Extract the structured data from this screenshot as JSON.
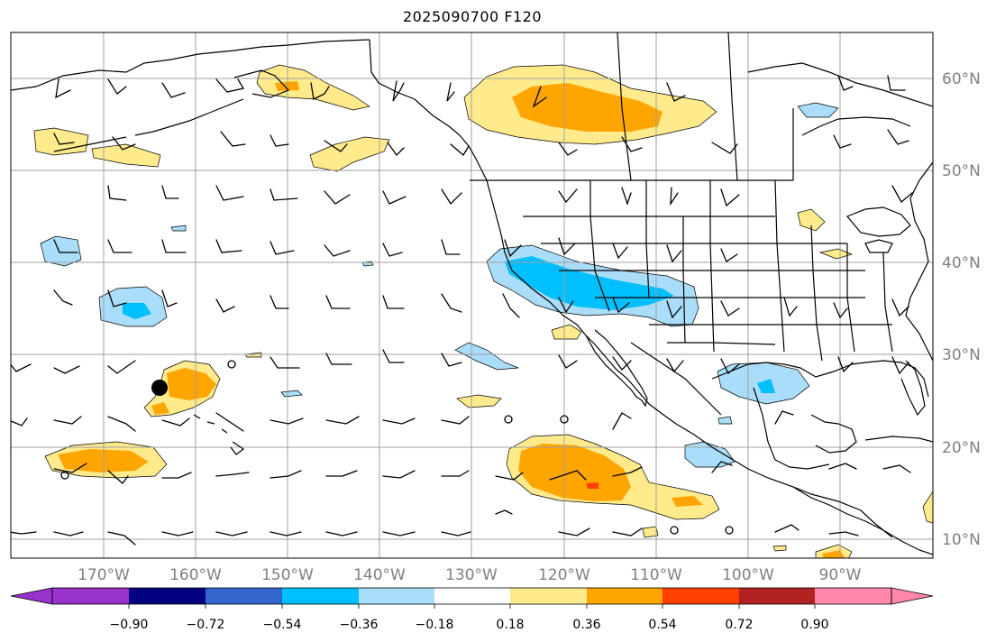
{
  "title": "2025090700 F120",
  "lon_labels": [
    "170°W",
    "160°W",
    "150°W",
    "140°W",
    "130°W",
    "120°W",
    "110°W",
    "100°W",
    "90°W"
  ],
  "lat_labels": [
    "60°N",
    "50°N",
    "40°N",
    "30°N",
    "20°N",
    "10°N"
  ],
  "colorbar": {
    "tick_labels": [
      "−0.90",
      "−0.72",
      "−0.54",
      "−0.36",
      "−0.18",
      "0.18",
      "0.36",
      "0.54",
      "0.72",
      "0.90"
    ],
    "colors": [
      "#9933cc",
      "#000080",
      "#3366cc",
      "#00bfff",
      "#aaddf9",
      "#ffffff",
      "#ffea8c",
      "#ffa500",
      "#ff4000",
      "#b22222",
      "#ff88aa"
    ]
  },
  "colors": {
    "land_outline": "#000000",
    "grid": "#a0a0a0",
    "tick_text": "#808080",
    "positive_light": "#ffea8c",
    "positive_mid": "#ffa500",
    "positive_strong": "#ff4000",
    "negative_light": "#aaddf9",
    "negative_mid": "#00bfff"
  },
  "marker": "storm-center-dot"
}
